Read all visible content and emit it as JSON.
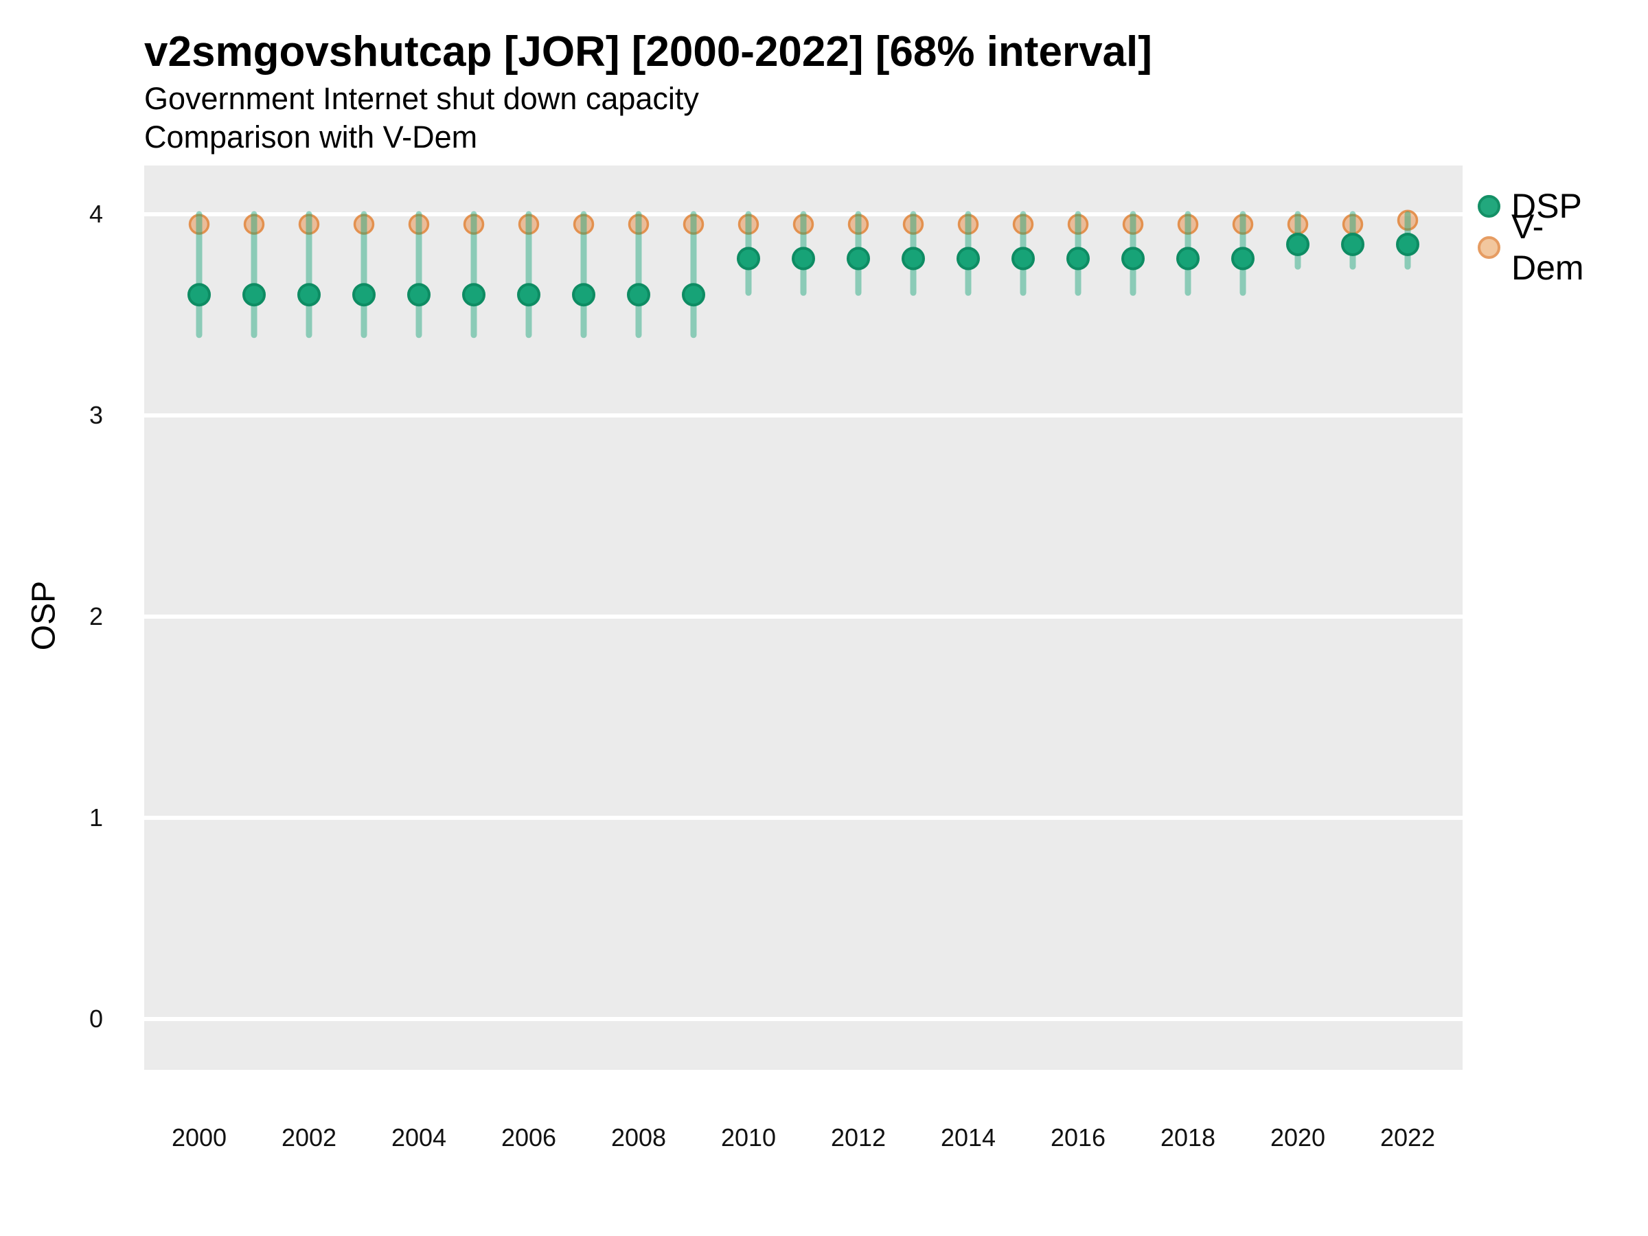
{
  "header": {
    "title": "v2smgovshutcap [JOR] [2000-2022] [68% interval]",
    "subtitle1": "Government Internet shut down capacity",
    "subtitle2": "Comparison with V-Dem"
  },
  "legend": {
    "items": [
      {
        "label": "DSP",
        "color": "#17a377"
      },
      {
        "label": "V-Dem",
        "color": "#e89a55"
      }
    ],
    "position": "right-top"
  },
  "axes": {
    "y_label": "OSP",
    "y_ticks": [
      4,
      3,
      2,
      1,
      0
    ],
    "x_ticks": [
      2000,
      2002,
      2004,
      2006,
      2008,
      2010,
      2012,
      2014,
      2016,
      2018,
      2020,
      2022
    ]
  },
  "chart_data": {
    "type": "pointrange",
    "title": "v2smgovshutcap [JOR] [2000-2022] [68% interval]",
    "subtitle": "Government Internet shut down capacity — Comparison with V-Dem",
    "xlabel": "",
    "ylabel": "OSP",
    "xlim": [
      1999,
      2023
    ],
    "ylim": [
      -0.25,
      4.25
    ],
    "grid": "horizontal-major-only",
    "interval_level": "68%",
    "x": [
      2000,
      2001,
      2002,
      2003,
      2004,
      2005,
      2006,
      2007,
      2008,
      2009,
      2010,
      2011,
      2012,
      2013,
      2014,
      2015,
      2016,
      2017,
      2018,
      2019,
      2020,
      2021,
      2022
    ],
    "series": [
      {
        "name": "DSP",
        "geom": "pointrange",
        "color": "#17a377",
        "stroke": "#0e8c63",
        "bar_color_rgba": "rgba(23,163,119,0.45)",
        "values": [
          3.6,
          3.6,
          3.6,
          3.6,
          3.6,
          3.6,
          3.6,
          3.6,
          3.6,
          3.6,
          3.78,
          3.78,
          3.78,
          3.78,
          3.78,
          3.78,
          3.78,
          3.78,
          3.78,
          3.78,
          3.85,
          3.85,
          3.85
        ],
        "lower": [
          3.4,
          3.4,
          3.4,
          3.4,
          3.4,
          3.4,
          3.4,
          3.4,
          3.4,
          3.4,
          3.61,
          3.61,
          3.61,
          3.61,
          3.61,
          3.61,
          3.61,
          3.61,
          3.61,
          3.61,
          3.74,
          3.74,
          3.74
        ],
        "upper": [
          4.0,
          4.0,
          4.0,
          4.0,
          4.0,
          4.0,
          4.0,
          4.0,
          4.0,
          4.0,
          4.0,
          4.0,
          4.0,
          4.0,
          4.0,
          4.0,
          4.0,
          4.0,
          4.0,
          4.0,
          4.0,
          4.0,
          4.0
        ]
      },
      {
        "name": "V-Dem",
        "geom": "point",
        "fill_rgba": "rgba(233,150,85,0.55)",
        "stroke_rgba": "rgba(226,137,66,0.9)",
        "values": [
          3.95,
          3.95,
          3.95,
          3.95,
          3.95,
          3.95,
          3.95,
          3.95,
          3.95,
          3.95,
          3.95,
          3.95,
          3.95,
          3.95,
          3.95,
          3.95,
          3.95,
          3.95,
          3.95,
          3.95,
          3.95,
          3.95,
          3.97
        ]
      }
    ],
    "panel_background": "#ebebeb",
    "gridline_color": "#ffffff"
  }
}
